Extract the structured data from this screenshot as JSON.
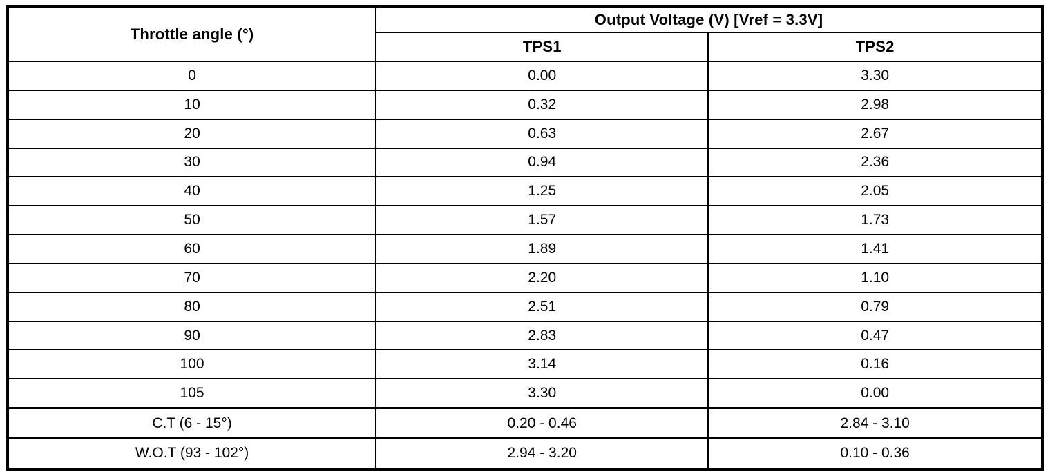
{
  "page": {
    "background_color": "#ffffff",
    "border_color": "#000000"
  },
  "table": {
    "angle_header": "Throttle angle (°)",
    "group_header": "Output Voltage (V) [Vref = 3.3V]",
    "sub_headers": [
      "TPS1",
      "TPS2"
    ],
    "rows": [
      {
        "angle": "0",
        "tps1": "0.00",
        "tps2": "3.30"
      },
      {
        "angle": "10",
        "tps1": "0.32",
        "tps2": "2.98"
      },
      {
        "angle": "20",
        "tps1": "0.63",
        "tps2": "2.67"
      },
      {
        "angle": "30",
        "tps1": "0.94",
        "tps2": "2.36"
      },
      {
        "angle": "40",
        "tps1": "1.25",
        "tps2": "2.05"
      },
      {
        "angle": "50",
        "tps1": "1.57",
        "tps2": "1.73"
      },
      {
        "angle": "60",
        "tps1": "1.89",
        "tps2": "1.41"
      },
      {
        "angle": "70",
        "tps1": "2.20",
        "tps2": "1.10"
      },
      {
        "angle": "80",
        "tps1": "2.51",
        "tps2": "0.79"
      },
      {
        "angle": "90",
        "tps1": "2.83",
        "tps2": "0.47"
      },
      {
        "angle": "100",
        "tps1": "3.14",
        "tps2": "0.16"
      },
      {
        "angle": "105",
        "tps1": "3.30",
        "tps2": "0.00"
      },
      {
        "angle": "C.T (6 - 15°)",
        "tps1": "0.20 - 0.46",
        "tps2": "2.84 - 3.10"
      },
      {
        "angle": "W.O.T (93 - 102°)",
        "tps1": "2.94 - 3.20",
        "tps2": "0.10 - 0.36"
      }
    ]
  }
}
